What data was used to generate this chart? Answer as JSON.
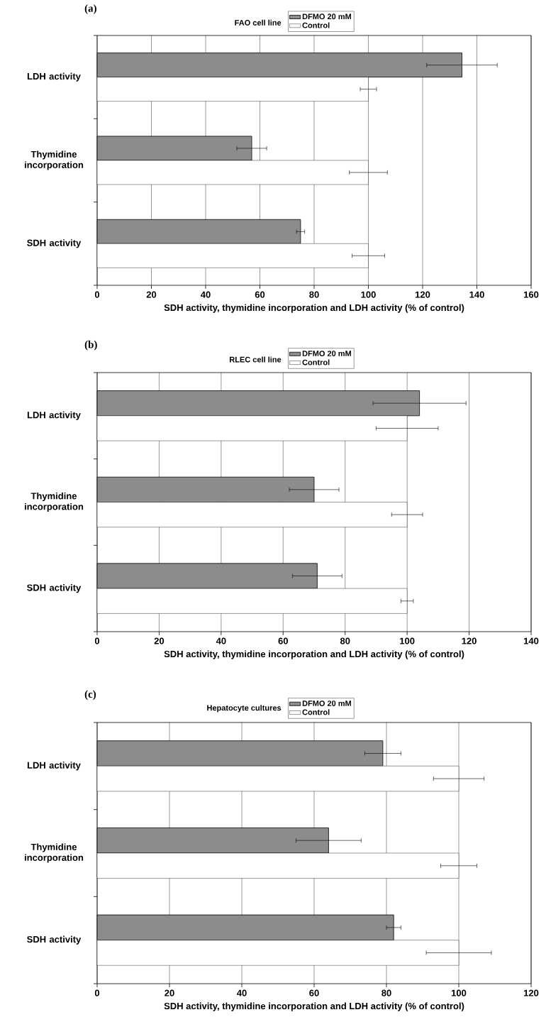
{
  "chart_data": [
    {
      "type": "bar",
      "orientation": "horizontal",
      "title": "FAO cell line",
      "annotations": [
        "(a)"
      ],
      "xlabel": "SDH activity, thymidine incorporation and LDH activity (% of control)",
      "categories": [
        "LDH activity",
        "Thymidine incorporation",
        "SDH activity"
      ],
      "series": [
        {
          "name": "DFMO 20 mM",
          "color": "#8c8c8c",
          "values": [
            134.5,
            57,
            75
          ],
          "errors": [
            13,
            5.5,
            1.5
          ]
        },
        {
          "name": "Control",
          "color": "#ffffff",
          "values": [
            100,
            100,
            100
          ],
          "errors": [
            3,
            7,
            6
          ]
        }
      ],
      "xlim": [
        0,
        160
      ],
      "xticks": [
        0,
        20,
        40,
        60,
        80,
        100,
        120,
        140,
        160
      ],
      "grid": "x",
      "legend": "top"
    },
    {
      "type": "bar",
      "orientation": "horizontal",
      "title": "RLEC cell line",
      "annotations": [
        "(b)"
      ],
      "xlabel": "SDH activity, thymidine incorporation and LDH activity (% of control)",
      "categories": [
        "LDH activity",
        "Thymidine incorporation",
        "SDH activity"
      ],
      "series": [
        {
          "name": "DFMO 20 mM",
          "color": "#8c8c8c",
          "values": [
            104,
            70,
            71
          ],
          "errors": [
            15,
            8,
            8
          ]
        },
        {
          "name": "Control",
          "color": "#ffffff",
          "values": [
            100,
            100,
            100
          ],
          "errors": [
            10,
            5,
            2
          ]
        }
      ],
      "xlim": [
        0,
        140
      ],
      "xticks": [
        0,
        20,
        40,
        60,
        80,
        100,
        120,
        140
      ],
      "grid": "x",
      "legend": "top"
    },
    {
      "type": "bar",
      "orientation": "horizontal",
      "title": "Hepatocyte cultures",
      "annotations": [
        "(c)"
      ],
      "xlabel": "SDH activity, thymidine incorporation and LDH activity (% of control)",
      "categories": [
        "LDH activity",
        "Thymidine incorporation",
        "SDH activity"
      ],
      "series": [
        {
          "name": "DFMO 20 mM",
          "color": "#8c8c8c",
          "values": [
            79,
            64,
            82
          ],
          "errors": [
            5,
            9,
            2
          ]
        },
        {
          "name": "Control",
          "color": "#ffffff",
          "values": [
            100,
            100,
            100
          ],
          "errors": [
            7,
            5,
            9
          ]
        }
      ],
      "xlim": [
        0,
        120
      ],
      "xticks": [
        0,
        20,
        40,
        60,
        80,
        100,
        120
      ],
      "grid": "x",
      "legend": "top"
    }
  ]
}
